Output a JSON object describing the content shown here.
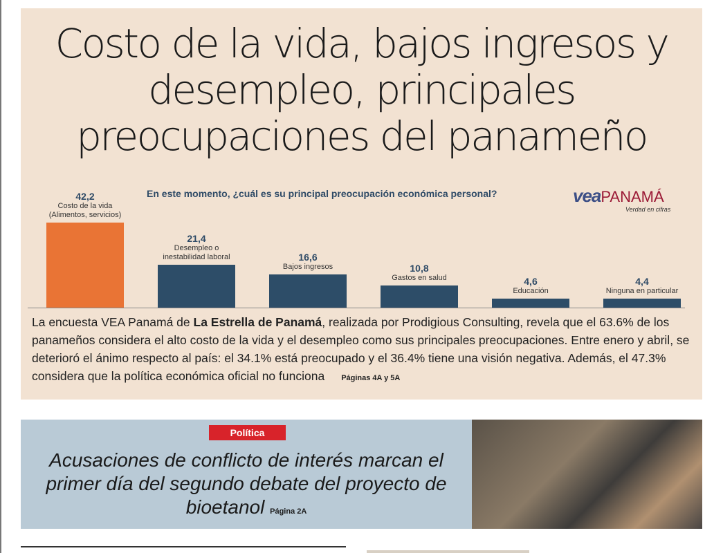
{
  "headline": [
    "Costo de la vida, bajos ingresos y",
    "desempleo, principales",
    "preocupaciones del panameño"
  ],
  "logo": {
    "vea": "vea",
    "panama": "PANAMÁ",
    "tagline": "Verdad en cifras"
  },
  "chart_data": {
    "type": "bar",
    "title": "En este momento, ¿cuál es su principal preocupación económica personal?",
    "categories": [
      [
        "Costo de la vida",
        "(Alimentos, servicios)"
      ],
      [
        "Desempleo o",
        "inestabilidad laboral"
      ],
      [
        "Bajos ingresos"
      ],
      [
        "Gastos en salud"
      ],
      [
        "Educación"
      ],
      [
        "Ninguna en particular"
      ]
    ],
    "values": [
      42.2,
      21.4,
      16.6,
      10.8,
      4.6,
      4.4
    ],
    "value_labels": [
      "42,2",
      "21,4",
      "16,6",
      "10,8",
      "4,6",
      "4,4"
    ],
    "colors": [
      "#e97435",
      "#2d4d68",
      "#2d4d68",
      "#2d4d68",
      "#2d4d68",
      "#2d4d68"
    ],
    "ylim": [
      0,
      45
    ]
  },
  "summary": {
    "pre": "La encuesta VEA Panamá de ",
    "bold": "La Estrella de Panamá",
    "post": ", realizada por Prodigious Consulting, revela que el 63.6% de los panameños considera el alto costo de la vida y el desempleo como sus principales preocupaciones. Entre enero y abril, se deterioró el ánimo respecto al país: el 34.1% está preocupado y el 36.4% tiene una visión negati­va. Además, el 47.3% considera que la política económica oficial no funciona",
    "pages": "Páginas 4A y 5A"
  },
  "politics": {
    "section": "Política",
    "headline": "Acusaciones de conflicto de interés marcan el primer día del segundo debate del proyecto de bioetanol",
    "page": "Página 2A"
  }
}
